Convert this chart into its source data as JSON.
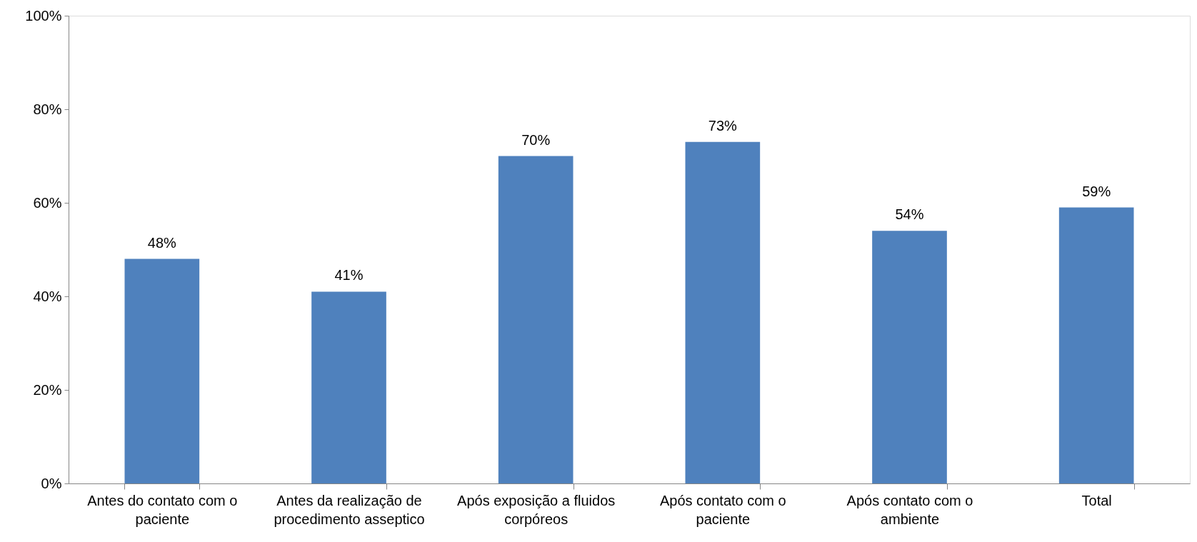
{
  "chart_data": {
    "type": "bar",
    "categories": [
      "Antes do contato com o paciente",
      "Antes da realização de procedimento asseptico",
      "Após exposição a fluidos corpóreos",
      "Após contato com o paciente",
      "Após contato com o ambiente",
      "Total"
    ],
    "values": [
      48,
      41,
      70,
      73,
      54,
      59
    ],
    "value_labels": [
      "48%",
      "41%",
      "70%",
      "73%",
      "54%",
      "59%"
    ],
    "color": "#4f81bd",
    "ylim": [
      0,
      100
    ],
    "yticks": [
      {
        "value": 0,
        "label": "0%"
      },
      {
        "value": 20,
        "label": "20%"
      },
      {
        "value": 40,
        "label": "40%"
      },
      {
        "value": 60,
        "label": "60%"
      },
      {
        "value": 80,
        "label": "80%"
      },
      {
        "value": 100,
        "label": "100%"
      }
    ],
    "grid": false
  }
}
